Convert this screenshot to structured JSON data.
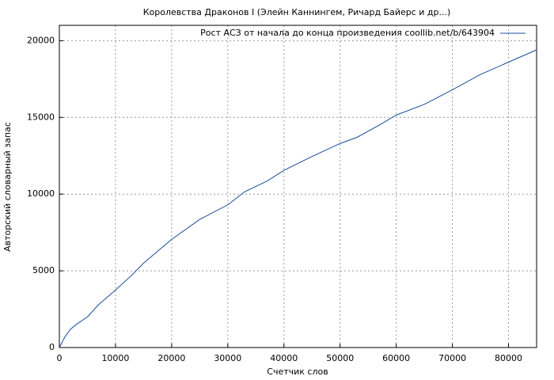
{
  "chart_data": {
    "type": "line",
    "title": "Королевства Драконов I (Элейн Каннингем, Ричард Байерс и др...)",
    "xlabel": "Счетчик слов",
    "ylabel": "Авторский словарный запас",
    "x": [
      0,
      1000,
      2000,
      3000,
      5000,
      7000,
      10000,
      13000,
      15000,
      20000,
      25000,
      30000,
      33000,
      37000,
      40000,
      45000,
      50000,
      53000,
      57000,
      60000,
      65000,
      70000,
      75000,
      80000,
      85000
    ],
    "series": [
      {
        "name": "Рост АСЗ от начала до конца произведения coollib.net/b/643904",
        "color": "#1a4c9c",
        "values": [
          0,
          700,
          1200,
          1500,
          2000,
          2800,
          3750,
          4750,
          5500,
          7050,
          8350,
          9300,
          10150,
          10850,
          11550,
          12450,
          13300,
          13700,
          14500,
          15150,
          15850,
          16800,
          17800,
          18600,
          19400
        ]
      }
    ],
    "xlim": [
      0,
      85000
    ],
    "ylim": [
      0,
      21000
    ],
    "xticks": [
      0,
      10000,
      20000,
      30000,
      40000,
      50000,
      60000,
      70000,
      80000
    ],
    "yticks": [
      0,
      5000,
      10000,
      15000,
      20000
    ],
    "grid": true,
    "legend": "top-right"
  }
}
